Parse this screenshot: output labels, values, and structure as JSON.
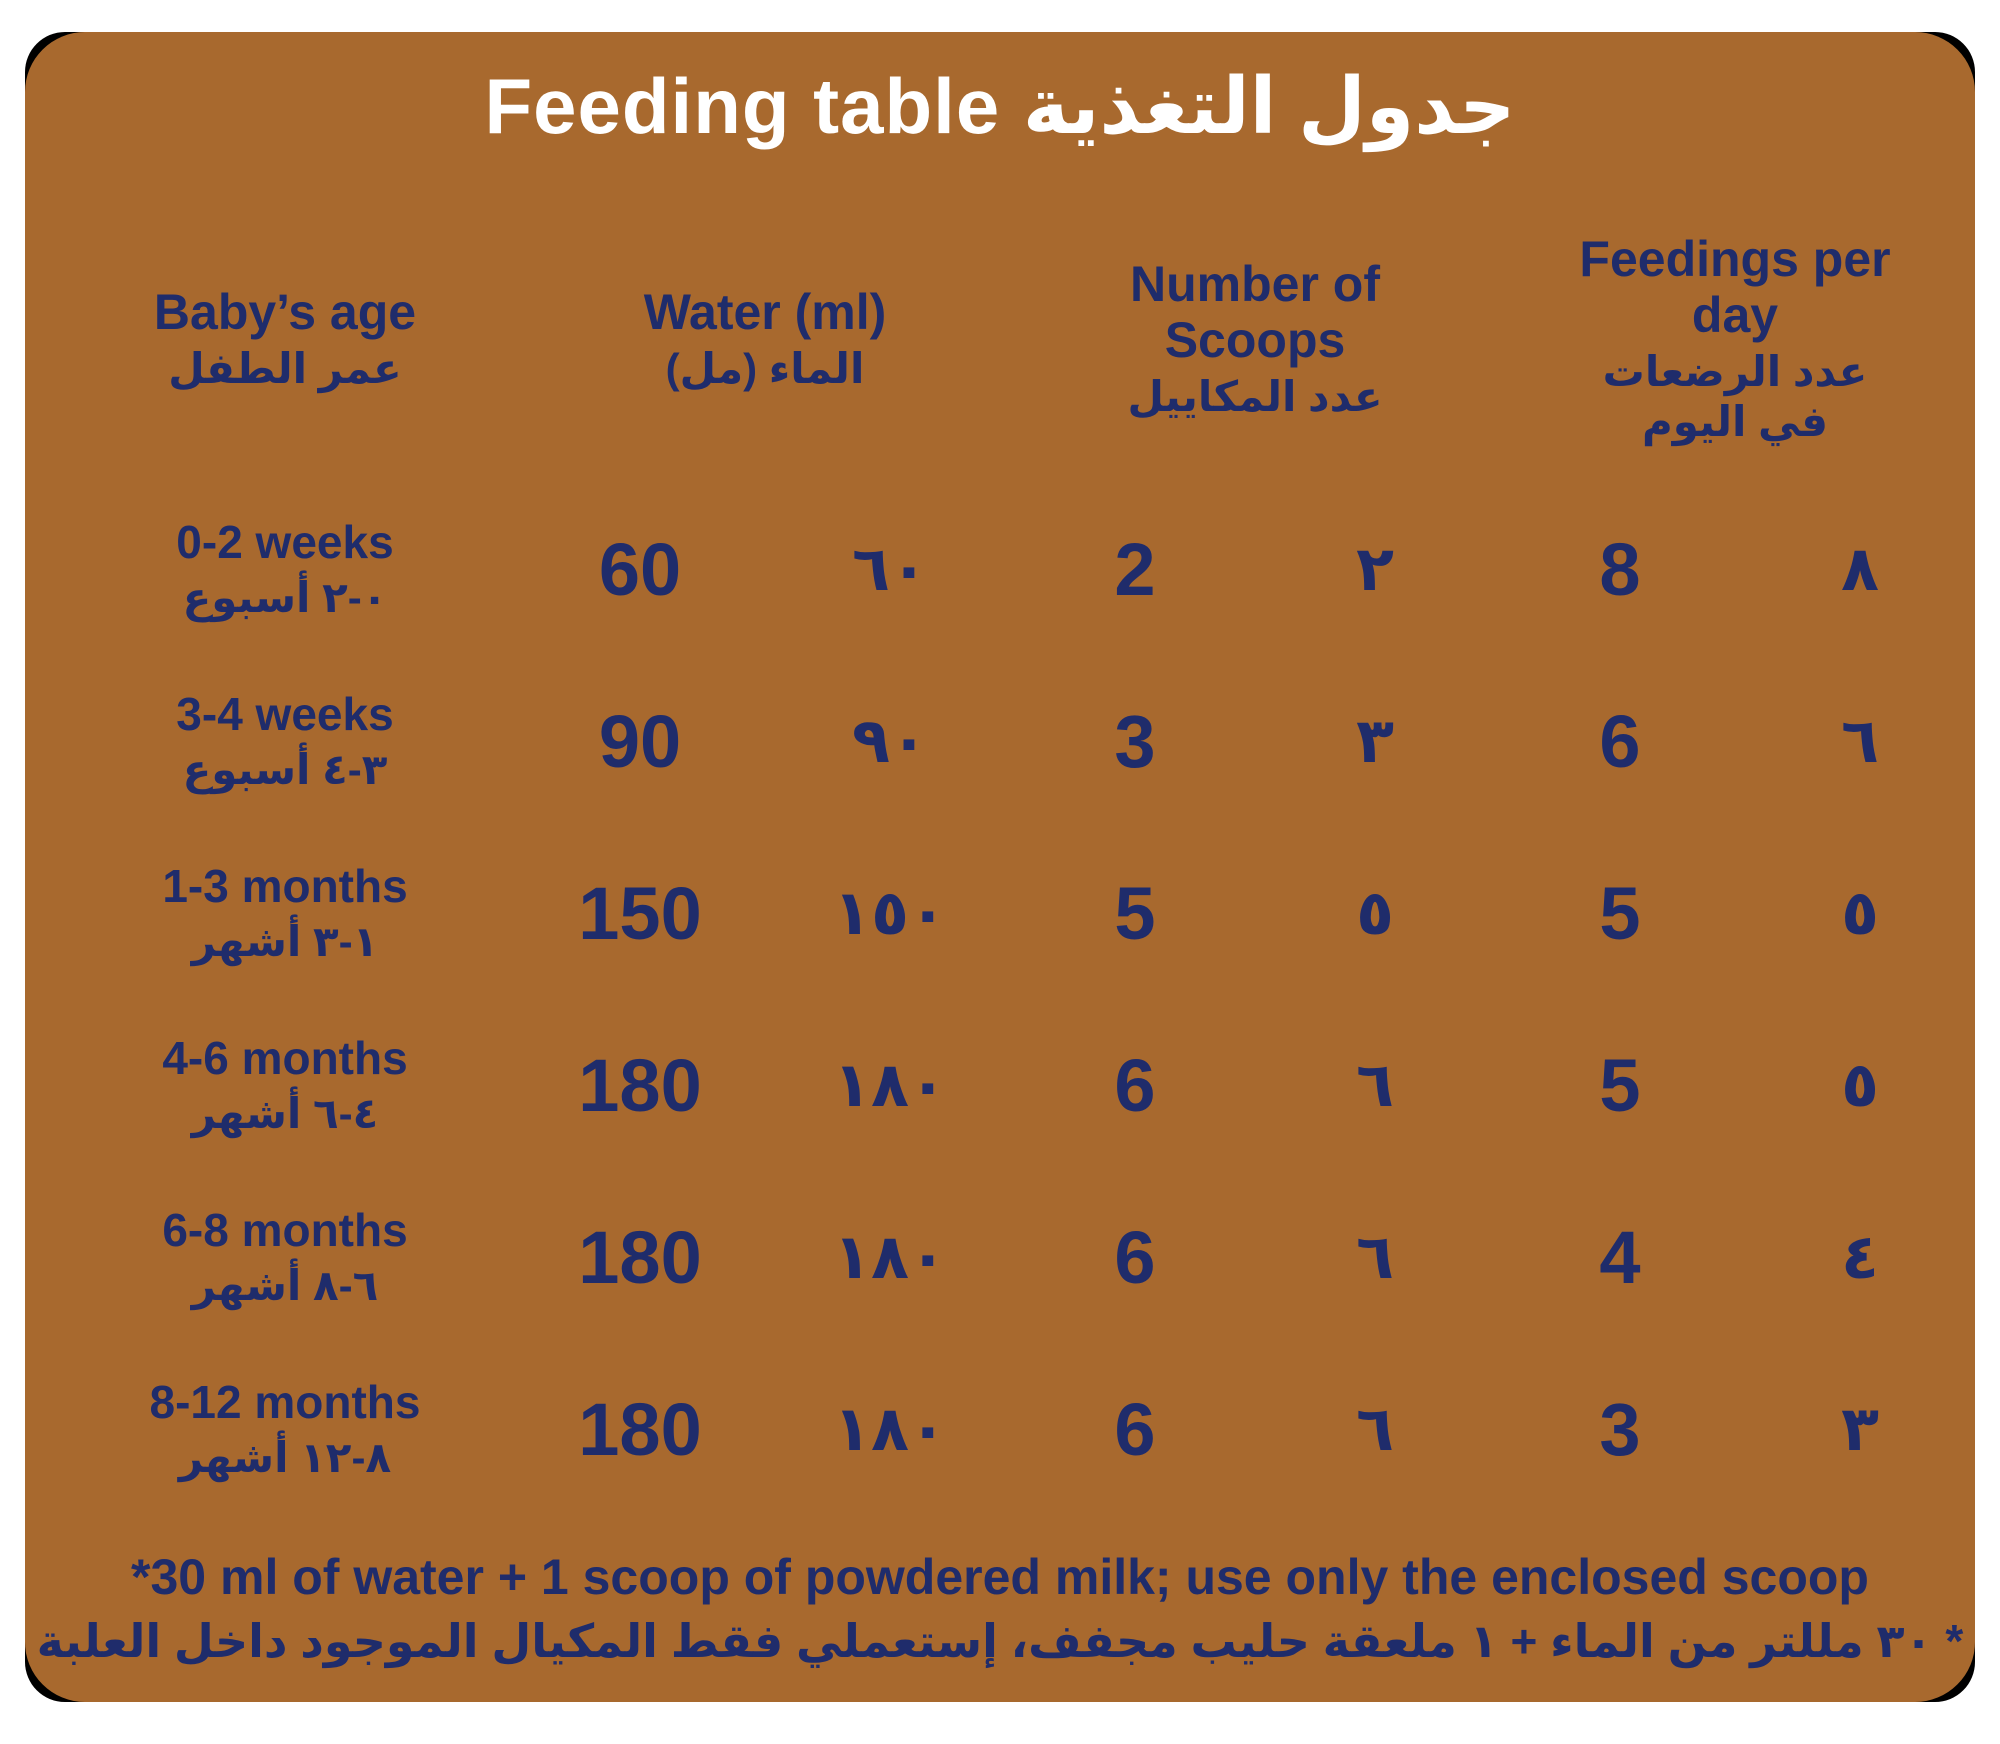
{
  "colors": {
    "page": "#FFFFFF",
    "card": "#A8692E",
    "ink": "#1F2C6B",
    "titlecolor": "#FFFFFF",
    "outline": "#000000"
  },
  "title": "Feeding table جدول التغذية",
  "table": {
    "headers": [
      {
        "en": "Baby’s age",
        "ar": "عمر الطفل"
      },
      {
        "en": "Water (ml)",
        "ar": "الماء (مل)"
      },
      {
        "en": "Number of Scoops",
        "ar": "عدد المكاييل"
      },
      {
        "en": "Feedings per day",
        "ar": "عدد الرضعات في اليوم"
      }
    ],
    "rows": [
      {
        "age_en": "0-2 weeks",
        "age_ar": "٠-٢ أسبوع",
        "water": "60",
        "water_ar": "٦٠",
        "scoops": "2",
        "scoops_ar": "٢",
        "feedings": "8",
        "feedings_ar": "٨"
      },
      {
        "age_en": "3-4 weeks",
        "age_ar": "٣-٤ أسبوع",
        "water": "90",
        "water_ar": "٩٠",
        "scoops": "3",
        "scoops_ar": "٣",
        "feedings": "6",
        "feedings_ar": "٦"
      },
      {
        "age_en": "1-3 months",
        "age_ar": "١-٣ أشهر",
        "water": "150",
        "water_ar": "١٥٠",
        "scoops": "5",
        "scoops_ar": "٥",
        "feedings": "5",
        "feedings_ar": "٥"
      },
      {
        "age_en": "4-6 months",
        "age_ar": "٤-٦ أشهر",
        "water": "180",
        "water_ar": "١٨٠",
        "scoops": "6",
        "scoops_ar": "٦",
        "feedings": "5",
        "feedings_ar": "٥"
      },
      {
        "age_en": "6-8 months",
        "age_ar": "٦-٨ أشهر",
        "water": "180",
        "water_ar": "١٨٠",
        "scoops": "6",
        "scoops_ar": "٦",
        "feedings": "4",
        "feedings_ar": "٤"
      },
      {
        "age_en": "8-12 months",
        "age_ar": "٨-١٢ أشهر",
        "water": "180",
        "water_ar": "١٨٠",
        "scoops": "6",
        "scoops_ar": "٦",
        "feedings": "3",
        "feedings_ar": "٣"
      }
    ]
  },
  "footnote": {
    "en": "*30 ml of water + 1 scoop of powdered milk; use only the enclosed scoop",
    "ar": "* ٣٠ مللتر من الماء + ١ ملعقة حليب مجفف، إستعملي فقط المكيال الموجود داخل العلبة"
  }
}
